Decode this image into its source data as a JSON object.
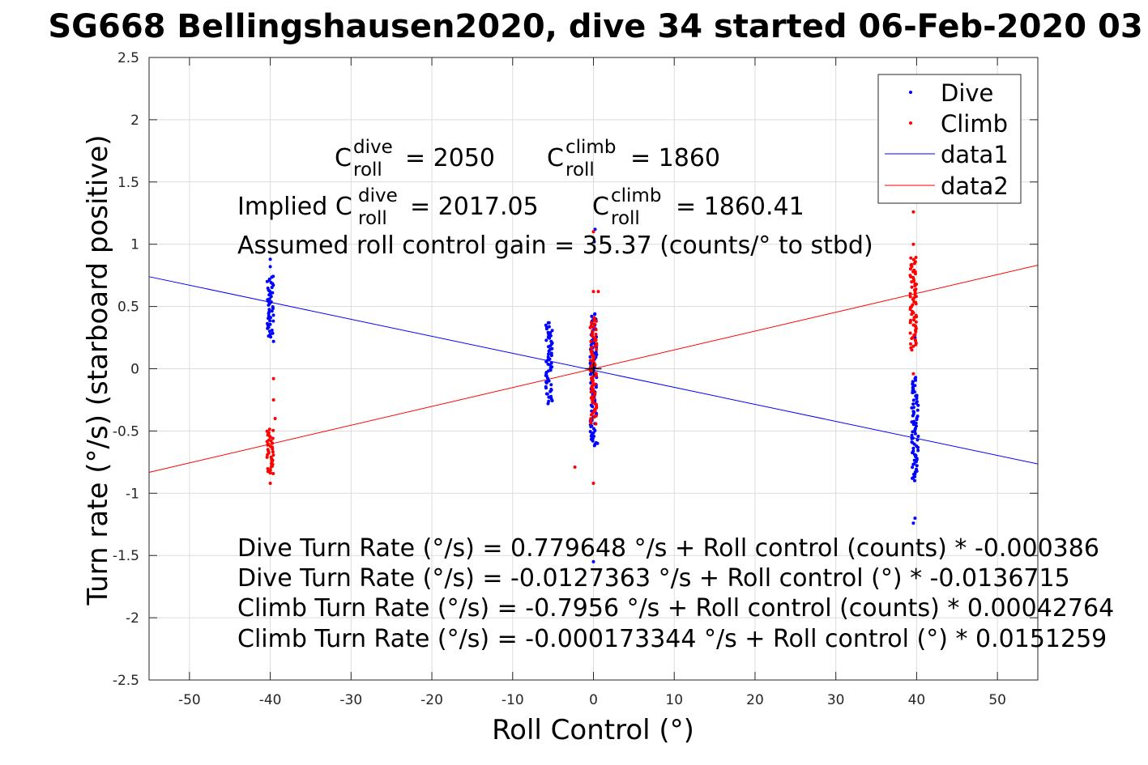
{
  "chart_data": {
    "type": "scatter",
    "title": "SG668 Bellingshausen2020, dive 34 started 06-Feb-2020 03",
    "xlabel": "Roll Control (°)",
    "ylabel": "Turn rate (°/s) (starboard positive)",
    "xlim": [
      -55,
      55
    ],
    "ylim": [
      -2.5,
      2.5
    ],
    "xticks": [
      "-50",
      "-40",
      "-30",
      "-20",
      "-10",
      "0",
      "10",
      "20",
      "30",
      "40",
      "50"
    ],
    "yticks": [
      "-2.5",
      "-2",
      "-1.5",
      "-1",
      "-0.5",
      "0",
      "0.5",
      "1",
      "1.5",
      "2",
      "2.5"
    ],
    "grid": true,
    "legend_position": "top-right",
    "legend": [
      "Dive",
      "Climb",
      "data1",
      "data2"
    ],
    "colors": {
      "dive": "#0000ff",
      "climb": "#ff0000",
      "axis": "#262626",
      "grid": "#dcdcdc"
    },
    "series": [
      {
        "name": "Dive",
        "kind": "points",
        "color": "#0000ff",
        "clusters": [
          {
            "x": -40,
            "y": [
              0.25,
              0.75
            ]
          },
          {
            "x": -5.5,
            "y": [
              -0.28,
              0.38
            ]
          },
          {
            "x": 0,
            "y": [
              -0.62,
              0.45
            ]
          },
          {
            "x": 39.8,
            "y": [
              -0.9,
              -0.06
            ]
          }
        ],
        "outliers": [
          {
            "x": -40,
            "y": 0.88
          },
          {
            "x": -40,
            "y": 0.82
          },
          {
            "x": -39.6,
            "y": 0.22
          },
          {
            "x": 0.2,
            "y": 1.12
          },
          {
            "x": 0.1,
            "y": 1.02
          },
          {
            "x": 0,
            "y": -1.55
          },
          {
            "x": 0.5,
            "y": -0.6
          },
          {
            "x": 39.8,
            "y": -1.2
          },
          {
            "x": 39.6,
            "y": -1.24
          },
          {
            "x": 39.8,
            "y": 0.25
          }
        ]
      },
      {
        "name": "Climb",
        "kind": "points",
        "color": "#ff0000",
        "clusters": [
          {
            "x": -40,
            "y": [
              -0.85,
              -0.48
            ]
          },
          {
            "x": 0,
            "y": [
              -0.45,
              0.42
            ]
          },
          {
            "x": 39.6,
            "y": [
              0.15,
              0.9
            ]
          }
        ],
        "outliers": [
          {
            "x": -40,
            "y": -0.92
          },
          {
            "x": -39.6,
            "y": -0.08
          },
          {
            "x": -39.6,
            "y": -0.25
          },
          {
            "x": -39.4,
            "y": -0.4
          },
          {
            "x": -2.3,
            "y": -0.79
          },
          {
            "x": 0,
            "y": -0.92
          },
          {
            "x": 0,
            "y": 0.62
          },
          {
            "x": 0.6,
            "y": 0.62
          },
          {
            "x": 0,
            "y": 1.1
          },
          {
            "x": 39.6,
            "y": 1.0
          },
          {
            "x": 39.6,
            "y": 1.26
          },
          {
            "x": 39.6,
            "y": -0.04
          }
        ]
      },
      {
        "name": "data1",
        "kind": "line",
        "color": "#0000ff",
        "intercept": -0.0127363,
        "slope": -0.0136715
      },
      {
        "name": "data2",
        "kind": "line",
        "color": "#ff0000",
        "intercept": -0.000173344,
        "slope": 0.0151259
      }
    ],
    "annotations": {
      "c_dive_label": "C",
      "c_dive_sup": "dive",
      "c_dive_sub": "roll",
      "c_dive_value": "= 2050",
      "c_climb_label": "C",
      "c_climb_sup": "climb",
      "c_climb_sub": "roll",
      "c_climb_value": "= 1860",
      "implied_prefix": "Implied C",
      "implied_dive_value": "= 2017.05",
      "implied_climb_value": "= 1860.41",
      "gain": "Assumed roll control gain = 35.37 (counts/° to stbd)",
      "eq1": "Dive Turn Rate (°/s) = 0.779648 °/s + Roll control (counts) * -0.000386",
      "eq2": "Dive Turn Rate (°/s) = -0.0127363 °/s + Roll control (°) * -0.0136715",
      "eq3": "Climb Turn Rate (°/s) = -0.7956 °/s + Roll control (counts) * 0.00042764",
      "eq4": "Climb Turn Rate (°/s) = -0.000173344 °/s + Roll control (°) * 0.0151259"
    }
  }
}
